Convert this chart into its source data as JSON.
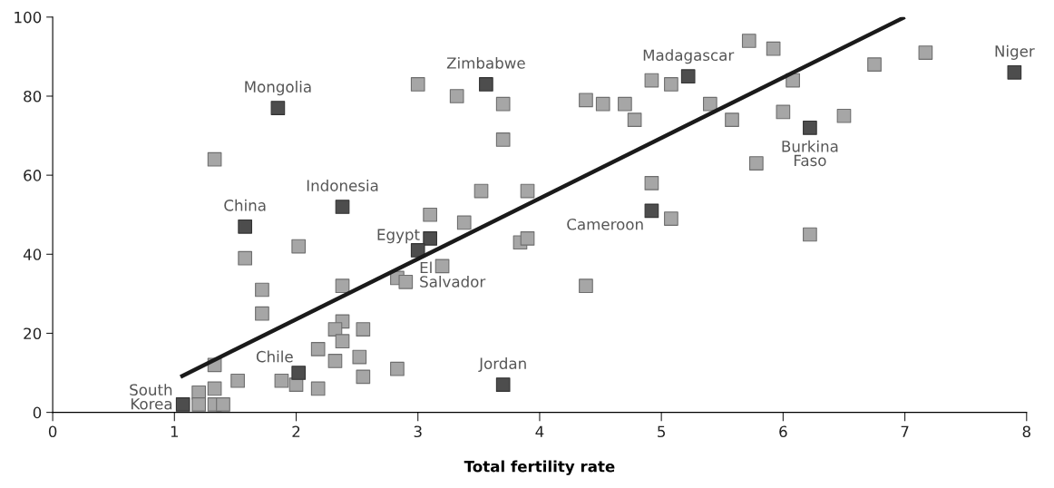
{
  "chart_data": {
    "type": "scatter",
    "xlabel": "Total fertility rate",
    "xlim": [
      0,
      8
    ],
    "ylim": [
      0,
      100
    ],
    "xticks": [
      0,
      1,
      2,
      3,
      4,
      5,
      6,
      7,
      8
    ],
    "yticks": [
      0,
      20,
      40,
      60,
      80,
      100
    ],
    "marker": "square",
    "grid": false,
    "series": [
      {
        "color": "#a6a6a6",
        "x": [
          1.33,
          1.58,
          1.72,
          1.72,
          2.02,
          2.38,
          2.38,
          2.32,
          2.38,
          2.55,
          2.18,
          2.32,
          2.52,
          2.55,
          2.18,
          1.88,
          2.0,
          2.83,
          1.33,
          1.33,
          1.52,
          1.2,
          1.2,
          1.33,
          1.4,
          3.0,
          3.32,
          3.7,
          3.7,
          3.1,
          3.38,
          3.52,
          3.9,
          3.2,
          2.83,
          2.9,
          3.84,
          3.9,
          4.38,
          4.38,
          4.52,
          4.7,
          4.78,
          4.92,
          5.08,
          4.92,
          5.08,
          5.4,
          5.58,
          5.72,
          5.92,
          6.08,
          6.0,
          5.78,
          6.22,
          6.5,
          6.75,
          7.17
        ],
        "values": [
          64,
          39,
          31,
          25,
          42,
          32,
          23,
          21,
          18,
          21,
          16,
          13,
          14,
          9,
          6,
          8,
          7,
          11,
          12,
          6,
          8,
          5,
          2,
          2,
          2,
          83,
          80,
          78,
          69,
          50,
          48,
          56,
          56,
          37,
          34,
          33,
          43,
          44,
          32,
          79,
          78,
          78,
          74,
          84,
          83,
          58,
          49,
          78,
          74,
          94,
          92,
          84,
          76,
          63,
          45,
          75,
          88,
          91
        ]
      },
      {
        "color": "#4d4d4d",
        "x": [
          1.07,
          2.02,
          1.58,
          1.85,
          2.38,
          3.1,
          3.0,
          3.56,
          3.7,
          4.92,
          5.22,
          6.22,
          7.9
        ],
        "values": [
          2,
          10,
          47,
          77,
          52,
          44,
          41,
          83,
          7,
          51,
          85,
          72,
          86
        ]
      },
      {
        "type": "line",
        "marker": "none",
        "color": "#1a1a1a",
        "x": [
          1.05,
          7.0
        ],
        "values": [
          9,
          100
        ]
      }
    ],
    "annotations": [
      {
        "text": "South\nKorea",
        "x": 1.07,
        "y": 2
      },
      {
        "text": "Chile",
        "x": 2.02,
        "y": 10
      },
      {
        "text": "China",
        "x": 1.58,
        "y": 47
      },
      {
        "text": "Mongolia",
        "x": 1.85,
        "y": 77
      },
      {
        "text": "Indonesia",
        "x": 2.38,
        "y": 52
      },
      {
        "text": "Egypt",
        "x": 3.1,
        "y": 44
      },
      {
        "text": "El\nSalvador",
        "x": 3.0,
        "y": 41
      },
      {
        "text": "Zimbabwe",
        "x": 3.56,
        "y": 83
      },
      {
        "text": "Jordan",
        "x": 3.7,
        "y": 7
      },
      {
        "text": "Cameroon",
        "x": 4.92,
        "y": 51
      },
      {
        "text": "Madagascar",
        "x": 5.22,
        "y": 85
      },
      {
        "text": "Burkina\nFaso",
        "x": 6.22,
        "y": 72
      },
      {
        "text": "Niger",
        "x": 7.9,
        "y": 86
      }
    ]
  }
}
